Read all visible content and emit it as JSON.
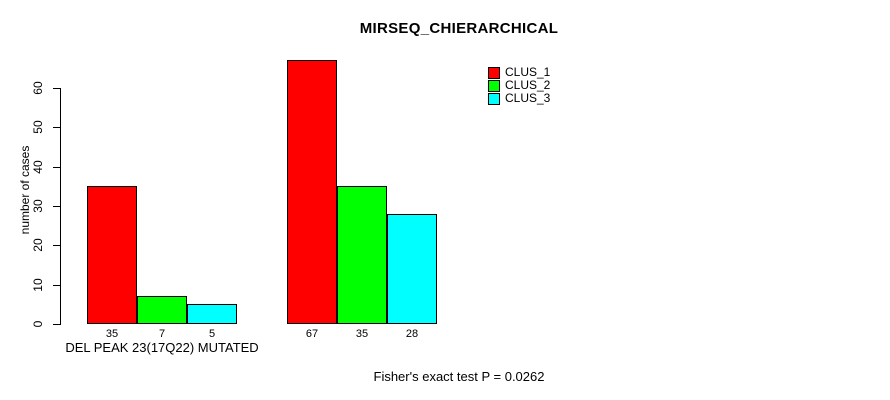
{
  "chart_data": {
    "type": "bar",
    "title": "MIRSEQ_CHIERARCHICAL",
    "ylabel": "number of cases",
    "xlabel": "",
    "ylim": [
      0,
      60
    ],
    "yticks": [
      0,
      10,
      20,
      30,
      40,
      50,
      60
    ],
    "grid": false,
    "legend_position": "top-right",
    "bar_border_color": "#000000",
    "series": [
      {
        "name": "CLUS_1",
        "color": "#FF0000"
      },
      {
        "name": "CLUS_2",
        "color": "#00FF00"
      },
      {
        "name": "CLUS_3",
        "color": "#00FFFF"
      }
    ],
    "groups": [
      {
        "label": "DEL PEAK 23(17Q22) MUTATED",
        "values": [
          35,
          7,
          5
        ]
      },
      {
        "label": "",
        "values": [
          67,
          35,
          28
        ]
      }
    ],
    "footer": "Fisher's exact test P = 0.0262"
  }
}
